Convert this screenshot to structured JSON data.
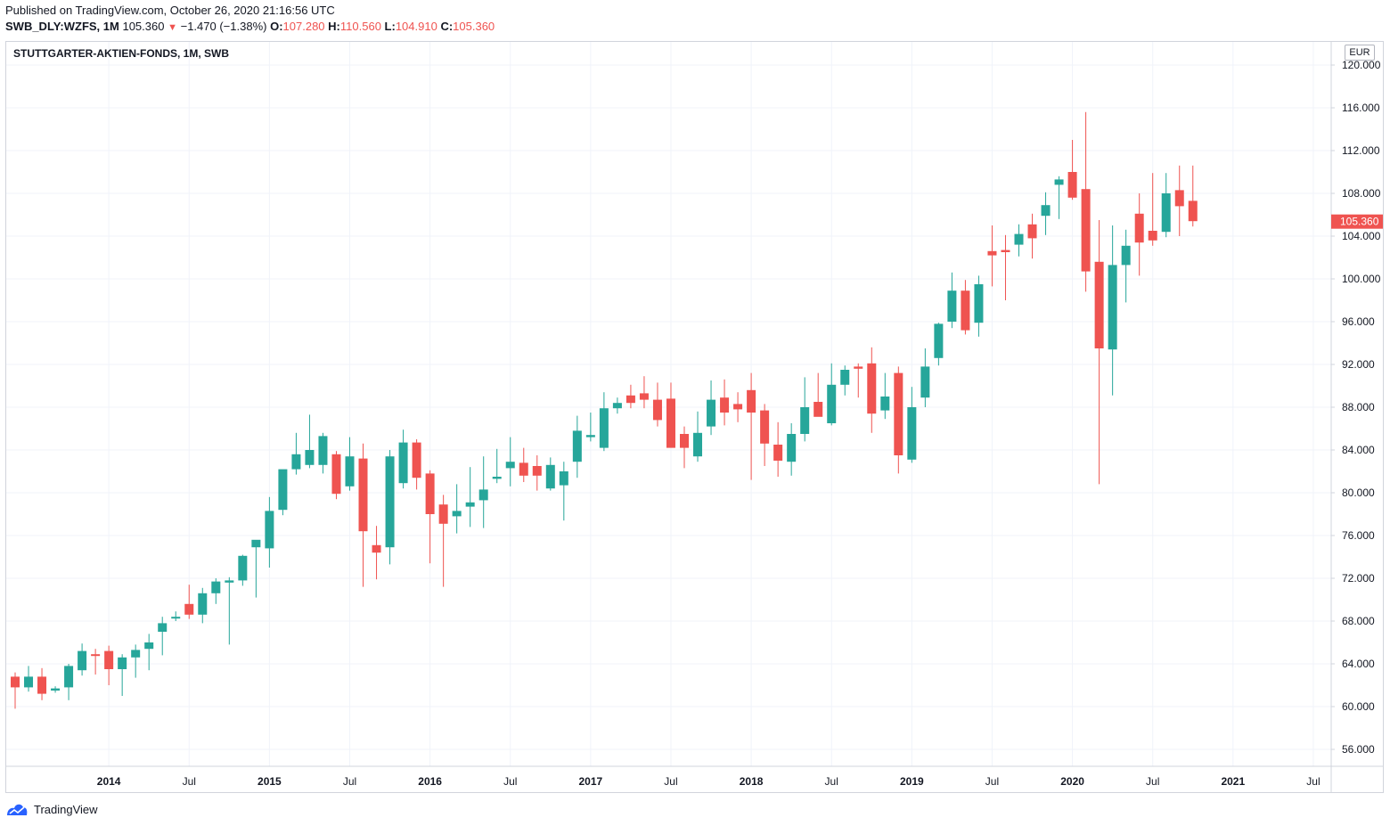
{
  "header": {
    "published": "Published on TradingView.com, October 26, 2020 21:16:56 UTC",
    "symbol": "SWB_DLY:WZFS, 1M",
    "last": "105.360",
    "change": "−1.470 (−1.38%)",
    "o_label": "O:",
    "o_value": "107.280",
    "h_label": "H:",
    "h_value": "110.560",
    "l_label": "L:",
    "l_value": "104.910",
    "c_label": "C:",
    "c_value": "105.360"
  },
  "currency": "EUR",
  "footer": {
    "brand": "TradingView"
  },
  "colors": {
    "up": "#26a69a",
    "down": "#ef5350",
    "grid": "#f0f3fa",
    "axis": "#d1d4dc"
  },
  "chart_data": {
    "type": "candlestick",
    "title": "STUTTGARTER-AKTIEN-FONDS, 1M, SWB",
    "xlabel": "",
    "ylabel": "",
    "ylim": [
      54,
      121
    ],
    "y_ticks": [
      "56.000",
      "60.000",
      "64.000",
      "68.000",
      "72.000",
      "76.000",
      "80.000",
      "84.000",
      "88.000",
      "92.000",
      "96.000",
      "100.000",
      "104.000",
      "108.000",
      "112.000",
      "116.000",
      "120.000"
    ],
    "x_ticks": [
      {
        "label": "2014",
        "index": 7
      },
      {
        "label": "Jul",
        "index": 13
      },
      {
        "label": "2015",
        "index": 19
      },
      {
        "label": "Jul",
        "index": 25
      },
      {
        "label": "2016",
        "index": 31
      },
      {
        "label": "Jul",
        "index": 37
      },
      {
        "label": "2017",
        "index": 43
      },
      {
        "label": "Jul",
        "index": 49
      },
      {
        "label": "2018",
        "index": 55
      },
      {
        "label": "Jul",
        "index": 61
      },
      {
        "label": "2019",
        "index": 67
      },
      {
        "label": "Jul",
        "index": 73
      },
      {
        "label": "2020",
        "index": 79
      },
      {
        "label": "Jul",
        "index": 85
      },
      {
        "label": "2021",
        "index": 91
      },
      {
        "label": "Jul",
        "index": 97
      }
    ],
    "last_price": "105.360",
    "candles": [
      [
        62.8,
        63.2,
        59.8,
        61.8
      ],
      [
        61.8,
        63.8,
        61.4,
        62.8
      ],
      [
        62.8,
        63.6,
        60.6,
        61.2
      ],
      [
        61.5,
        61.9,
        61.3,
        61.7
      ],
      [
        61.8,
        64.0,
        60.6,
        63.8
      ],
      [
        63.4,
        65.9,
        62.9,
        65.2
      ],
      [
        64.9,
        65.4,
        63.0,
        64.8
      ],
      [
        65.2,
        65.7,
        62.0,
        63.5
      ],
      [
        63.5,
        64.9,
        61.0,
        64.6
      ],
      [
        64.6,
        65.8,
        62.7,
        65.3
      ],
      [
        65.4,
        66.8,
        63.4,
        66.0
      ],
      [
        67.0,
        68.4,
        64.8,
        67.8
      ],
      [
        68.3,
        68.9,
        68.0,
        68.4
      ],
      [
        69.6,
        71.4,
        68.2,
        68.6
      ],
      [
        68.6,
        71.1,
        67.8,
        70.6
      ],
      [
        70.6,
        72.0,
        69.6,
        71.7
      ],
      [
        71.6,
        72.1,
        65.8,
        71.8
      ],
      [
        71.8,
        74.2,
        71.3,
        74.1
      ],
      [
        74.9,
        75.4,
        70.2,
        75.6
      ],
      [
        74.8,
        79.6,
        73.0,
        78.3
      ],
      [
        78.4,
        82.1,
        77.9,
        82.2
      ],
      [
        82.2,
        85.6,
        81.7,
        83.6
      ],
      [
        82.6,
        87.3,
        82.3,
        84.0
      ],
      [
        82.6,
        85.6,
        81.8,
        85.3
      ],
      [
        83.6,
        83.9,
        79.4,
        79.9
      ],
      [
        80.6,
        85.2,
        80.2,
        83.4
      ],
      [
        83.2,
        84.6,
        71.2,
        76.4
      ],
      [
        75.1,
        76.9,
        71.9,
        74.4
      ],
      [
        74.9,
        84.0,
        73.3,
        83.4
      ],
      [
        80.9,
        85.9,
        80.4,
        84.7
      ],
      [
        84.7,
        85.0,
        80.3,
        81.4
      ],
      [
        81.8,
        82.1,
        73.4,
        78.0
      ],
      [
        78.9,
        79.8,
        71.2,
        77.1
      ],
      [
        77.8,
        80.8,
        76.2,
        78.3
      ],
      [
        78.7,
        82.4,
        76.8,
        79.1
      ],
      [
        79.3,
        83.4,
        76.7,
        80.3
      ],
      [
        81.3,
        84.1,
        80.9,
        81.5
      ],
      [
        82.3,
        85.2,
        80.6,
        82.9
      ],
      [
        82.8,
        84.2,
        81.0,
        81.6
      ],
      [
        82.5,
        83.5,
        80.2,
        81.6
      ],
      [
        80.4,
        83.3,
        80.2,
        82.6
      ],
      [
        80.7,
        82.9,
        77.4,
        82.0
      ],
      [
        82.9,
        87.2,
        81.4,
        85.8
      ],
      [
        85.2,
        87.5,
        84.8,
        85.4
      ],
      [
        84.2,
        89.4,
        83.9,
        87.9
      ],
      [
        87.9,
        88.9,
        87.4,
        88.4
      ],
      [
        89.1,
        90.1,
        87.9,
        88.4
      ],
      [
        89.3,
        90.9,
        87.9,
        88.7
      ],
      [
        88.7,
        90.3,
        86.2,
        86.8
      ],
      [
        88.8,
        90.3,
        84.3,
        84.2
      ],
      [
        85.5,
        86.2,
        82.3,
        84.2
      ],
      [
        83.4,
        87.6,
        82.9,
        85.6
      ],
      [
        86.2,
        90.5,
        85.4,
        88.7
      ],
      [
        88.9,
        90.6,
        86.3,
        87.5
      ],
      [
        88.3,
        89.4,
        86.6,
        87.8
      ],
      [
        89.6,
        91.2,
        81.2,
        87.5
      ],
      [
        87.7,
        88.3,
        82.5,
        84.6
      ],
      [
        84.5,
        86.6,
        81.5,
        83.0
      ],
      [
        82.9,
        86.5,
        81.6,
        85.5
      ],
      [
        85.5,
        90.8,
        84.8,
        88.0
      ],
      [
        88.5,
        91.2,
        87.4,
        87.1
      ],
      [
        86.5,
        92.1,
        86.3,
        90.1
      ],
      [
        90.1,
        91.9,
        89.1,
        91.5
      ],
      [
        91.8,
        92.1,
        88.9,
        91.6
      ],
      [
        92.1,
        93.6,
        85.6,
        87.4
      ],
      [
        87.7,
        91.2,
        86.9,
        89.0
      ],
      [
        91.2,
        91.8,
        81.8,
        83.5
      ],
      [
        83.1,
        89.9,
        82.8,
        88.0
      ],
      [
        88.9,
        93.5,
        88.0,
        91.8
      ],
      [
        92.6,
        95.9,
        91.9,
        95.8
      ],
      [
        96.0,
        100.6,
        95.4,
        98.9
      ],
      [
        98.9,
        99.9,
        94.8,
        95.2
      ],
      [
        95.9,
        100.3,
        94.6,
        99.5
      ],
      [
        102.6,
        105.0,
        99.3,
        102.2
      ],
      [
        102.7,
        104.1,
        98.0,
        102.5
      ],
      [
        103.2,
        105.1,
        102.1,
        104.2
      ],
      [
        105.1,
        106.1,
        101.9,
        103.8
      ],
      [
        105.9,
        108.1,
        104.1,
        106.9
      ],
      [
        108.8,
        109.6,
        105.6,
        109.3
      ],
      [
        110.0,
        113.0,
        107.4,
        107.6
      ],
      [
        108.4,
        115.6,
        98.8,
        100.7
      ],
      [
        101.6,
        105.5,
        80.8,
        93.5
      ],
      [
        93.4,
        105.0,
        89.1,
        101.3
      ],
      [
        101.3,
        104.6,
        97.8,
        103.1
      ],
      [
        106.1,
        108.0,
        100.3,
        103.4
      ],
      [
        104.5,
        109.9,
        103.1,
        103.6
      ],
      [
        104.4,
        109.9,
        103.9,
        108.0
      ],
      [
        108.3,
        110.6,
        104.0,
        106.8
      ],
      [
        107.3,
        110.6,
        104.9,
        105.4
      ]
    ]
  }
}
